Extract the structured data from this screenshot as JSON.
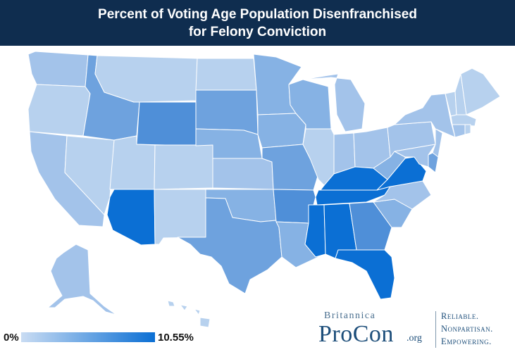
{
  "title": {
    "line1": "Percent of Voting Age Population Disenfranchised",
    "line2": "for Felony Conviction"
  },
  "legend": {
    "min_label": "0%",
    "max_label": "10.55%",
    "color_low": "#c9dcf3",
    "color_high": "#0b6fd4"
  },
  "branding": {
    "top": "Britannica",
    "name": "ProCon",
    "suffix": ".org",
    "tagline": [
      "Reliable.",
      "Nonpartisan.",
      "Empowering."
    ]
  },
  "colors": {
    "header_bg": "#0f2d4f",
    "lightest": "#b7d1ee",
    "light": "#a3c3ea",
    "mid": "#86b2e4",
    "midstrong": "#6ea2de",
    "strong": "#4f8fd8",
    "darkest": "#0b6fd4"
  },
  "states": [
    {
      "name": "WA",
      "shade": "light"
    },
    {
      "name": "OR",
      "shade": "lightest"
    },
    {
      "name": "CA",
      "shade": "light"
    },
    {
      "name": "NV",
      "shade": "lightest"
    },
    {
      "name": "ID",
      "shade": "midstrong"
    },
    {
      "name": "MT",
      "shade": "lightest"
    },
    {
      "name": "WY",
      "shade": "strong"
    },
    {
      "name": "UT",
      "shade": "lightest"
    },
    {
      "name": "CO",
      "shade": "lightest"
    },
    {
      "name": "AZ",
      "shade": "darkest"
    },
    {
      "name": "NM",
      "shade": "lightest"
    },
    {
      "name": "ND",
      "shade": "lightest"
    },
    {
      "name": "SD",
      "shade": "midstrong"
    },
    {
      "name": "NE",
      "shade": "mid"
    },
    {
      "name": "KS",
      "shade": "light"
    },
    {
      "name": "OK",
      "shade": "mid"
    },
    {
      "name": "TX",
      "shade": "midstrong"
    },
    {
      "name": "MN",
      "shade": "mid"
    },
    {
      "name": "IA",
      "shade": "mid"
    },
    {
      "name": "MO",
      "shade": "midstrong"
    },
    {
      "name": "AR",
      "shade": "strong"
    },
    {
      "name": "LA",
      "shade": "mid"
    },
    {
      "name": "WI",
      "shade": "mid"
    },
    {
      "name": "IL",
      "shade": "lightest"
    },
    {
      "name": "MI",
      "shade": "light"
    },
    {
      "name": "IN",
      "shade": "light"
    },
    {
      "name": "OH",
      "shade": "light"
    },
    {
      "name": "KY",
      "shade": "darkest"
    },
    {
      "name": "TN",
      "shade": "darkest"
    },
    {
      "name": "MS",
      "shade": "darkest"
    },
    {
      "name": "AL",
      "shade": "darkest"
    },
    {
      "name": "GA",
      "shade": "strong"
    },
    {
      "name": "FL",
      "shade": "darkest"
    },
    {
      "name": "SC",
      "shade": "mid"
    },
    {
      "name": "NC",
      "shade": "light"
    },
    {
      "name": "VA",
      "shade": "darkest"
    },
    {
      "name": "WV",
      "shade": "mid"
    },
    {
      "name": "PA",
      "shade": "light"
    },
    {
      "name": "NY",
      "shade": "light"
    },
    {
      "name": "NJ",
      "shade": "light"
    },
    {
      "name": "DE",
      "shade": "midstrong"
    },
    {
      "name": "MD",
      "shade": "light"
    },
    {
      "name": "ME",
      "shade": "lightest"
    },
    {
      "name": "NH",
      "shade": "lightest"
    },
    {
      "name": "VT",
      "shade": "lightest"
    },
    {
      "name": "MA",
      "shade": "lightest"
    },
    {
      "name": "CT",
      "shade": "light"
    },
    {
      "name": "RI",
      "shade": "lightest"
    },
    {
      "name": "AK",
      "shade": "light"
    },
    {
      "name": "HI",
      "shade": "lightest"
    }
  ]
}
